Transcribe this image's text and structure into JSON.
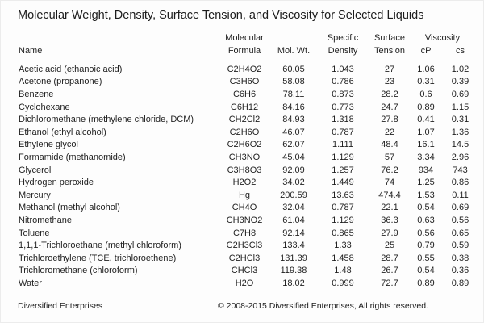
{
  "title": "Molecular Weight, Density, Surface Tension, and Viscosity for Selected Liquids",
  "table": {
    "header": {
      "name": "Name",
      "molecular_line1": "Molecular",
      "molecular_line2": "Formula",
      "mol_wt": "Mol. Wt.",
      "specific_line1": "Specific",
      "specific_line2": "Density",
      "surface_line1": "Surface",
      "surface_line2": "Tension",
      "viscosity": "Viscosity",
      "cp": "cP",
      "cs": "cs"
    },
    "rows": [
      {
        "name": "Acetic acid (ethanoic acid)",
        "formula": "C2H4O2",
        "mol_wt": "60.05",
        "density": "1.043",
        "tension": "27",
        "cp": "1.06",
        "cs": "1.02"
      },
      {
        "name": "Acetone (propanone)",
        "formula": "C3H6O",
        "mol_wt": "58.08",
        "density": "0.786",
        "tension": "23",
        "cp": "0.31",
        "cs": "0.39"
      },
      {
        "name": "Benzene",
        "formula": "C6H6",
        "mol_wt": "78.11",
        "density": "0.873",
        "tension": "28.2",
        "cp": "0.6",
        "cs": "0.69"
      },
      {
        "name": "Cyclohexane",
        "formula": "C6H12",
        "mol_wt": "84.16",
        "density": "0.773",
        "tension": "24.7",
        "cp": "0.89",
        "cs": "1.15"
      },
      {
        "name": "Dichloromethane (methylene chloride, DCM)",
        "formula": "CH2Cl2",
        "mol_wt": "84.93",
        "density": "1.318",
        "tension": "27.8",
        "cp": "0.41",
        "cs": "0.31"
      },
      {
        "name": "Ethanol (ethyl alcohol)",
        "formula": "C2H6O",
        "mol_wt": "46.07",
        "density": "0.787",
        "tension": "22",
        "cp": "1.07",
        "cs": "1.36"
      },
      {
        "name": "Ethylene glycol",
        "formula": "C2H6O2",
        "mol_wt": "62.07",
        "density": "1.111",
        "tension": "48.4",
        "cp": "16.1",
        "cs": "14.5"
      },
      {
        "name": "Formamide (methanomide)",
        "formula": "CH3NO",
        "mol_wt": "45.04",
        "density": "1.129",
        "tension": "57",
        "cp": "3.34",
        "cs": "2.96"
      },
      {
        "name": "Glycerol",
        "formula": "C3H8O3",
        "mol_wt": "92.09",
        "density": "1.257",
        "tension": "76.2",
        "cp": "934",
        "cs": "743"
      },
      {
        "name": "Hydrogen peroxide",
        "formula": "H2O2",
        "mol_wt": "34.02",
        "density": "1.449",
        "tension": "74",
        "cp": "1.25",
        "cs": "0.86"
      },
      {
        "name": "Mercury",
        "formula": "Hg",
        "mol_wt": "200.59",
        "density": "13.63",
        "tension": "474.4",
        "cp": "1.53",
        "cs": "0.11"
      },
      {
        "name": "Methanol (methyl alcohol)",
        "formula": "CH4O",
        "mol_wt": "32.04",
        "density": "0.787",
        "tension": "22.1",
        "cp": "0.54",
        "cs": "0.69"
      },
      {
        "name": "Nitromethane",
        "formula": "CH3NO2",
        "mol_wt": "61.04",
        "density": "1.129",
        "tension": "36.3",
        "cp": "0.63",
        "cs": "0.56"
      },
      {
        "name": "Toluene",
        "formula": "C7H8",
        "mol_wt": "92.14",
        "density": "0.865",
        "tension": "27.9",
        "cp": "0.56",
        "cs": "0.65"
      },
      {
        "name": "1,1,1-Trichloroethane (methyl chloroform)",
        "formula": "C2H3Cl3",
        "mol_wt": "133.4",
        "density": "1.33",
        "tension": "25",
        "cp": "0.79",
        "cs": "0.59"
      },
      {
        "name": "Trichloroethylene (TCE, trichloroethene)",
        "formula": "C2HCl3",
        "mol_wt": "131.39",
        "density": "1.458",
        "tension": "28.7",
        "cp": "0.55",
        "cs": "0.38"
      },
      {
        "name": "Trichloromethane (chloroform)",
        "formula": "CHCl3",
        "mol_wt": "119.38",
        "density": "1.48",
        "tension": "26.7",
        "cp": "0.54",
        "cs": "0.36"
      },
      {
        "name": "Water",
        "formula": "H2O",
        "mol_wt": "18.02",
        "density": "0.999",
        "tension": "72.7",
        "cp": "0.89",
        "cs": "0.89"
      }
    ]
  },
  "footer": {
    "left": "Diversified Enterprises",
    "copyright": "© 2008-2015 Diversified Enterprises, All rights reserved."
  },
  "colors": {
    "text": "#1f1f1f",
    "background": "#fdfdfd"
  }
}
